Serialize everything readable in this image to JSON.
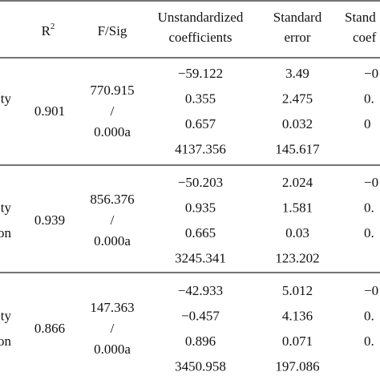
{
  "header": {
    "r2": "R",
    "r2_sup": "2",
    "fsig": "F/Sig",
    "unstandardized": [
      "Unstandardized",
      "coefficients"
    ],
    "standard_error": [
      "Standard",
      "error"
    ],
    "standardized": [
      "Stand",
      "coef"
    ]
  },
  "groups": [
    {
      "row_labels": [
        null,
        "ty",
        null,
        null
      ],
      "r2": "0.901",
      "fsig": [
        "770.915",
        "/",
        "0.000a"
      ],
      "coefficients": [
        "−59.122",
        "0.355",
        "0.657",
        "4137.356"
      ],
      "standard_errors": [
        "3.49",
        "2.475",
        "0.032",
        "145.617"
      ],
      "standardized": [
        "−0",
        "0.",
        "0",
        null
      ]
    },
    {
      "row_labels": [
        null,
        "ty",
        "on",
        null
      ],
      "r2": "0.939",
      "fsig": [
        "856.376",
        "/",
        "0.000a"
      ],
      "coefficients": [
        "−50.203",
        "0.935",
        "0.665",
        "3245.341"
      ],
      "standard_errors": [
        "2.024",
        "1.581",
        "0.03",
        "123.202"
      ],
      "standardized": [
        "−0",
        "0.",
        "0.",
        null
      ]
    },
    {
      "row_labels": [
        null,
        "ty",
        "on",
        null
      ],
      "r2": "0.866",
      "fsig": [
        "147.363",
        "/",
        "0.000a"
      ],
      "coefficients": [
        "−42.933",
        "−0.457",
        "0.896",
        "3450.958"
      ],
      "standard_errors": [
        "5.012",
        "4.136",
        "0.071",
        "197.086"
      ],
      "standardized": [
        "−0",
        "0.",
        "0.",
        null
      ]
    }
  ]
}
